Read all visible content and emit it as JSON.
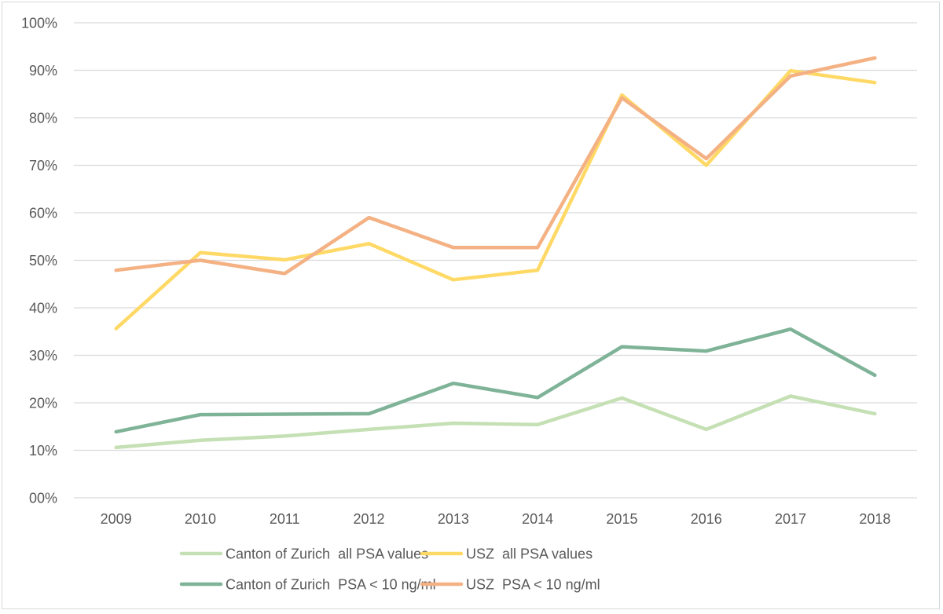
{
  "chart_data": {
    "type": "line",
    "title": "",
    "xlabel": "",
    "ylabel": "",
    "ylim": [
      0,
      100
    ],
    "y_ticks": [
      "00%",
      "10%",
      "20%",
      "30%",
      "40%",
      "50%",
      "60%",
      "70%",
      "80%",
      "90%",
      "100%"
    ],
    "y_tick_values": [
      0,
      10,
      20,
      30,
      40,
      50,
      60,
      70,
      80,
      90,
      100
    ],
    "grid": "horizontal",
    "legend_position": "bottom",
    "categories": [
      "2009",
      "2010",
      "2011",
      "2012",
      "2013",
      "2014",
      "2015",
      "2016",
      "2017",
      "2018"
    ],
    "series": [
      {
        "name": "Canton of Zurich  all PSA values",
        "color": "#C5E0B4",
        "values": [
          10.6,
          12.1,
          13.0,
          14.4,
          15.7,
          15.4,
          21.0,
          14.4,
          21.4,
          17.7
        ]
      },
      {
        "name": "USZ  all PSA values",
        "color": "#FFD966",
        "values": [
          35.6,
          51.6,
          50.1,
          53.5,
          45.9,
          47.9,
          84.8,
          70.0,
          89.9,
          87.4
        ]
      },
      {
        "name": "Canton of Zurich  PSA < 10 ng/ml",
        "color": "#7FB398",
        "values": [
          13.9,
          17.5,
          17.6,
          17.7,
          24.1,
          21.1,
          31.8,
          30.9,
          35.5,
          25.8
        ]
      },
      {
        "name": "USZ  PSA < 10 ng/ml",
        "color": "#F4B183",
        "values": [
          47.9,
          50.0,
          47.2,
          59.0,
          52.7,
          52.7,
          84.2,
          71.4,
          88.8,
          92.6
        ]
      }
    ]
  }
}
